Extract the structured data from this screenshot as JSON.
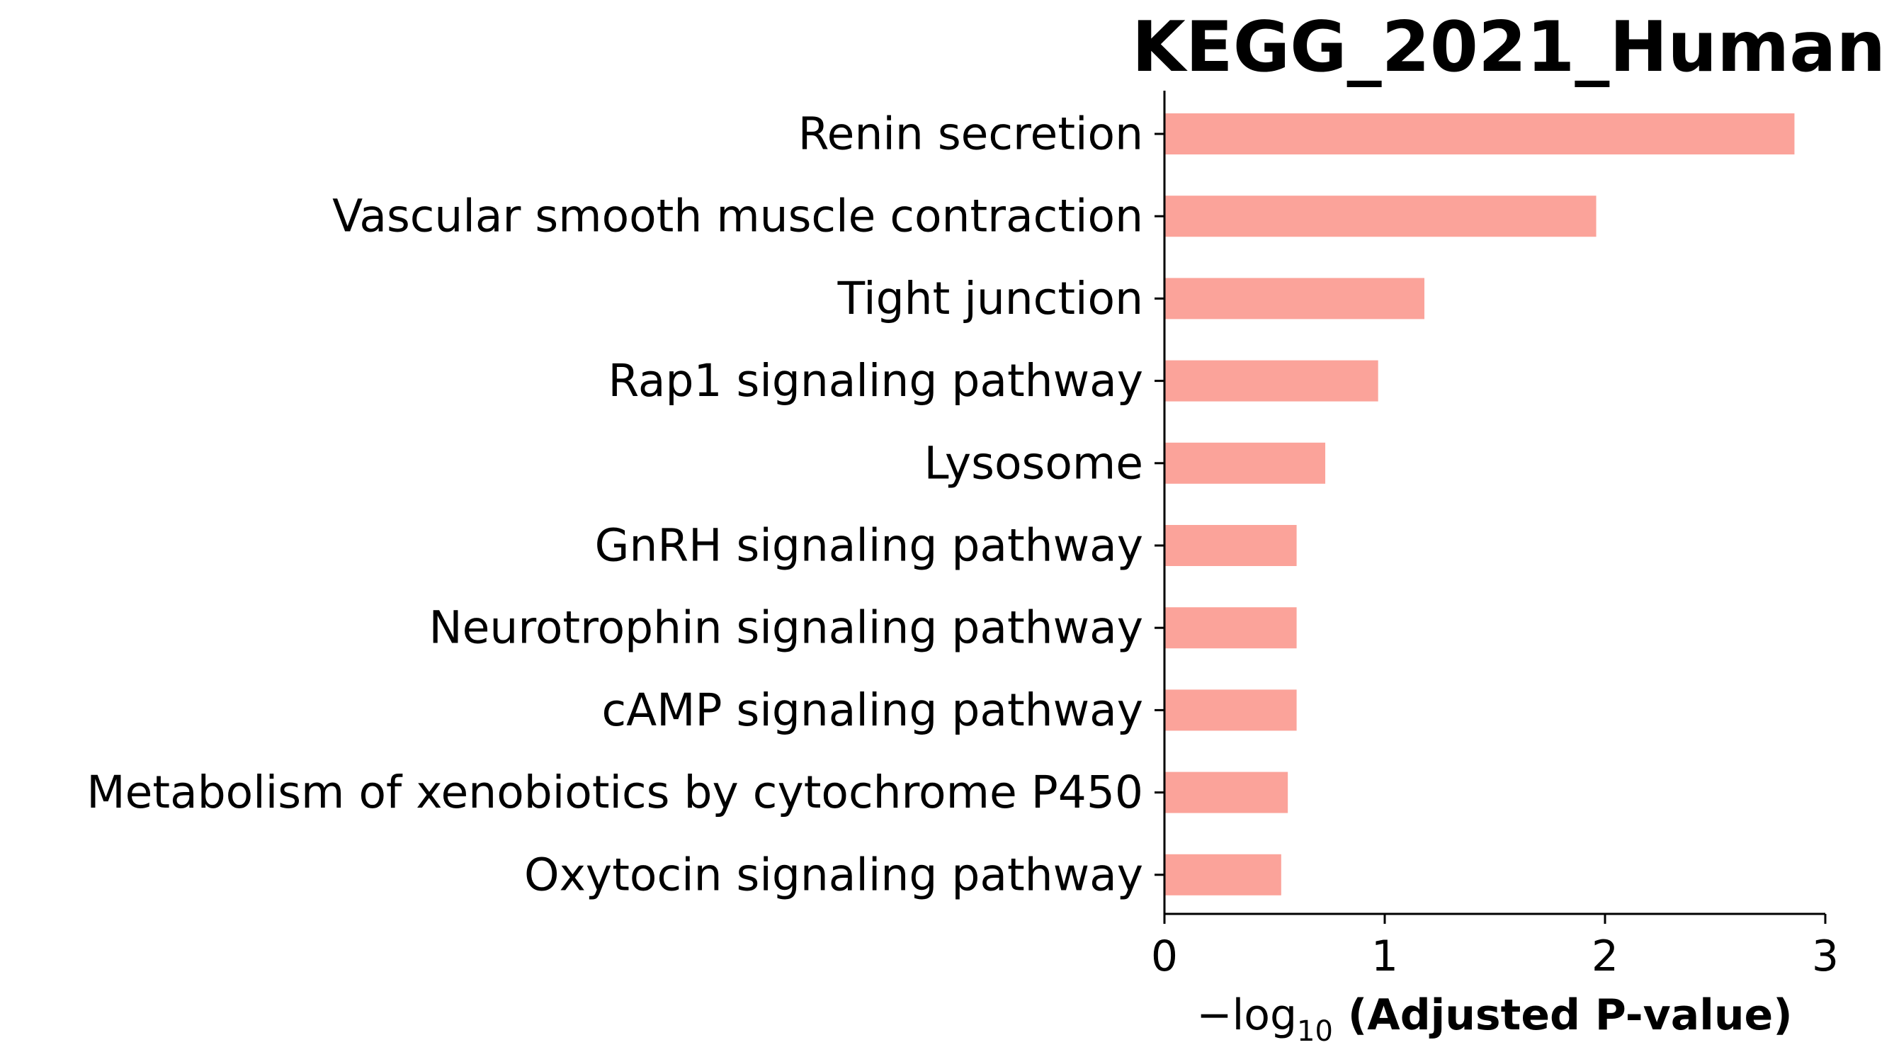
{
  "chart_data": {
    "type": "bar",
    "orientation": "horizontal",
    "title": "KEGG_2021_Human",
    "xlabel": {
      "prefix": "−log",
      "subscript": "10",
      "suffix": " (Adjusted P-value)"
    },
    "ylabel": "",
    "categories": [
      "Renin secretion",
      "Vascular smooth muscle contraction",
      "Tight junction",
      "Rap1 signaling pathway",
      "Lysosome",
      "GnRH signaling pathway",
      "Neurotrophin signaling pathway",
      "cAMP signaling pathway",
      "Metabolism of xenobiotics by cytochrome P450",
      "Oxytocin signaling pathway"
    ],
    "values": [
      2.86,
      1.96,
      1.18,
      0.97,
      0.73,
      0.6,
      0.6,
      0.6,
      0.56,
      0.53
    ],
    "xlim": [
      0,
      3
    ],
    "xticks": [
      "0",
      "1",
      "2",
      "3"
    ],
    "grid": false,
    "legend": "none",
    "bar_color": "#fba39a",
    "axis_color": "#000000"
  }
}
